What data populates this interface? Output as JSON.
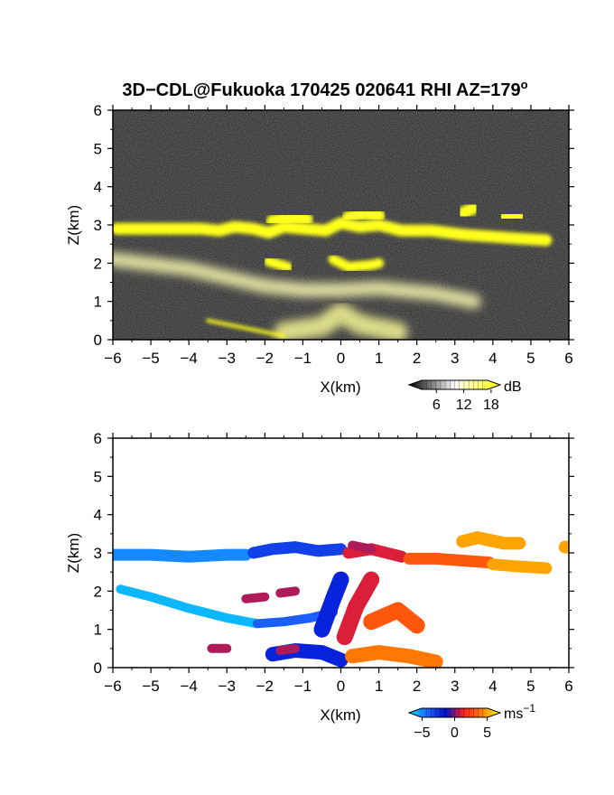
{
  "title": "3D−CDL@Fukuoka 170425 020641 RHI AZ=179",
  "title_superscript": "o",
  "chart_data": [
    {
      "type": "heatmap",
      "panel": "top",
      "quantity": "backscatter intensity",
      "xlabel": "X(km)",
      "ylabel": "Z(km)",
      "xlim": [
        -6,
        6
      ],
      "ylim": [
        0,
        6
      ],
      "xticks": [
        "−6",
        "−5",
        "−4",
        "−3",
        "−2",
        "−1",
        "0",
        "1",
        "2",
        "3",
        "4",
        "5",
        "6"
      ],
      "yticks": [
        "0",
        "1",
        "2",
        "3",
        "4",
        "5",
        "6"
      ],
      "colorbar": {
        "unit": "dB",
        "range": [
          0,
          20
        ],
        "ticks": [
          "6",
          "12",
          "18"
        ],
        "tick_values": [
          6,
          12,
          18
        ],
        "colors": [
          "#000000",
          "#ffffff",
          "#ffff00"
        ]
      },
      "background_color": "#1e1e1e",
      "highlight_color": "#ffff00",
      "regions": [
        {
          "kind": "cloud-layer",
          "level_db": 19,
          "x": [
            -5.9,
            -3.7,
            -3.2,
            -2.8,
            -2.3,
            -1.9,
            -1.5,
            -0.4,
            0,
            0.5,
            1,
            1.6,
            2.4,
            3.2,
            3.9,
            4.6,
            5.4
          ],
          "z": [
            2.9,
            2.9,
            2.85,
            2.95,
            2.9,
            2.8,
            2.95,
            2.85,
            3.05,
            2.95,
            3.0,
            2.85,
            2.85,
            2.75,
            2.7,
            2.65,
            2.6
          ]
        },
        {
          "kind": "cloud-top",
          "level_db": 19,
          "x": [
            -1.8,
            -1.3,
            -0.9
          ],
          "z": [
            3.1,
            3.2,
            3.15
          ]
        },
        {
          "kind": "cloud-top",
          "level_db": 19,
          "x": [
            0.2,
            0.6,
            1.0
          ],
          "z": [
            3.2,
            3.3,
            3.25
          ]
        },
        {
          "kind": "cloud-top",
          "level_db": 19,
          "x": [
            3.2,
            3.5
          ],
          "z": [
            3.3,
            3.45
          ]
        },
        {
          "kind": "cloud-top",
          "level_db": 19,
          "x": [
            4.3,
            4.7
          ],
          "z": [
            3.2,
            3.25
          ]
        },
        {
          "kind": "cloud-top",
          "level_db": 19,
          "x": [
            5.9,
            6.0
          ],
          "z": [
            3.15,
            3.15
          ]
        },
        {
          "kind": "cloud-patch",
          "level_db": 19,
          "x": [
            -1.9,
            -1.4
          ],
          "z": [
            2.05,
            1.9
          ]
        },
        {
          "kind": "cloud-patch",
          "level_db": 19,
          "x": [
            -0.2,
            0.2,
            0.8,
            1.0
          ],
          "z": [
            2.1,
            1.9,
            1.95,
            2.0
          ]
        },
        {
          "kind": "aerosol-layer",
          "level_db": 13,
          "x": [
            -6,
            -4,
            -2,
            -1,
            0,
            1,
            2.5,
            3.5
          ],
          "z": [
            2.1,
            1.85,
            1.4,
            1.3,
            1.3,
            1.35,
            1.2,
            1.0
          ]
        },
        {
          "kind": "near-ground-return",
          "level_db": 14,
          "x": [
            -1.5,
            -0.5,
            0,
            0.5,
            1.5
          ],
          "z": [
            0.2,
            0.35,
            0.7,
            0.4,
            0.2
          ]
        },
        {
          "kind": "ground-line",
          "level_db": 19,
          "x": [
            -3.5,
            -2.5,
            -1.5
          ],
          "z": [
            0.5,
            0.3,
            0.1
          ]
        }
      ]
    },
    {
      "type": "heatmap",
      "panel": "bottom",
      "quantity": "radial velocity",
      "xlabel": "X(km)",
      "ylabel": "Z(km)",
      "xlim": [
        -6,
        6
      ],
      "ylim": [
        0,
        6
      ],
      "xticks": [
        "−6",
        "−5",
        "−4",
        "−3",
        "−2",
        "−1",
        "0",
        "1",
        "2",
        "3",
        "4",
        "5",
        "6"
      ],
      "yticks": [
        "0",
        "1",
        "2",
        "3",
        "4",
        "5",
        "6"
      ],
      "colorbar": {
        "unit": "ms",
        "unit_superscript": "−1",
        "range": [
          -7,
          7
        ],
        "ticks": [
          "−5",
          "0",
          "5"
        ],
        "tick_values": [
          -5,
          0,
          5
        ],
        "colors": [
          "#00e5ff",
          "#1e64ff",
          "#0010d0",
          "#ff2020",
          "#ff8000",
          "#ffff00"
        ]
      },
      "background_color": "#ffffff",
      "regions": [
        {
          "kind": "cloud-layer",
          "velocity_ms": -5,
          "x": [
            -6,
            -5,
            -4,
            -3,
            -2.5
          ],
          "z": [
            2.95,
            2.95,
            2.9,
            2.95,
            2.95
          ]
        },
        {
          "kind": "cloud-layer",
          "velocity_ms": -3,
          "x": [
            -2.3,
            -1.8,
            -1.2,
            -0.6,
            0
          ],
          "z": [
            3.0,
            3.1,
            3.15,
            3.05,
            3.1
          ]
        },
        {
          "kind": "cloud-layer",
          "velocity_ms": 1,
          "x": [
            0.2,
            0.8,
            1.2,
            1.6
          ],
          "z": [
            3.0,
            3.1,
            3.0,
            2.9
          ]
        },
        {
          "kind": "cloud-layer",
          "velocity_ms": 3,
          "x": [
            1.8,
            2.5,
            3.2,
            3.9
          ],
          "z": [
            2.85,
            2.85,
            2.8,
            2.75
          ]
        },
        {
          "kind": "cloud-layer",
          "velocity_ms": 5,
          "x": [
            4.0,
            4.6,
            5.4
          ],
          "z": [
            2.7,
            2.65,
            2.6
          ]
        },
        {
          "kind": "cloud-top",
          "velocity_ms": 5,
          "x": [
            3.2,
            3.6,
            4.3,
            4.7
          ],
          "z": [
            3.3,
            3.4,
            3.25,
            3.25
          ]
        },
        {
          "kind": "cloud-top",
          "velocity_ms": 5,
          "x": [
            5.9,
            6.0
          ],
          "z": [
            3.15,
            3.15
          ]
        },
        {
          "kind": "aerosol-layer",
          "velocity_ms": -6,
          "x": [
            -5.8,
            -5,
            -4,
            -3,
            -2.2
          ],
          "z": [
            2.05,
            1.85,
            1.55,
            1.3,
            1.15
          ]
        },
        {
          "kind": "aerosol-layer",
          "velocity_ms": -4,
          "x": [
            -2.2,
            -1.5,
            -0.8,
            -0.2
          ],
          "z": [
            1.15,
            1.2,
            1.3,
            1.45
          ]
        },
        {
          "kind": "column",
          "velocity_ms": -2,
          "x": [
            -0.5,
            -0.2,
            0
          ],
          "z": [
            1.0,
            1.8,
            2.3
          ]
        },
        {
          "kind": "column",
          "velocity_ms": 1,
          "x": [
            0.1,
            0.4,
            0.8
          ],
          "z": [
            0.8,
            1.6,
            2.3
          ]
        },
        {
          "kind": "column",
          "velocity_ms": 3,
          "x": [
            0.8,
            1.5,
            2.0
          ],
          "z": [
            1.2,
            1.5,
            1.1
          ]
        },
        {
          "kind": "near-ground",
          "velocity_ms": -2,
          "x": [
            -1.8,
            -1.2,
            -0.5,
            0
          ],
          "z": [
            0.35,
            0.45,
            0.4,
            0.2
          ]
        },
        {
          "kind": "near-ground",
          "velocity_ms": 4,
          "x": [
            0.3,
            1.0,
            1.8,
            2.5
          ],
          "z": [
            0.3,
            0.4,
            0.3,
            0.15
          ]
        },
        {
          "kind": "patch",
          "velocity_ms": 0.5,
          "x": [
            -2.5,
            -2.0
          ],
          "z": [
            1.8,
            1.85
          ]
        },
        {
          "kind": "patch",
          "velocity_ms": 0.5,
          "x": [
            -1.6,
            -1.2
          ],
          "z": [
            1.95,
            2.0
          ]
        },
        {
          "kind": "patch",
          "velocity_ms": 0.5,
          "x": [
            -1.6,
            -1.2
          ],
          "z": [
            0.45,
            0.5
          ]
        },
        {
          "kind": "patch",
          "velocity_ms": 0.5,
          "x": [
            -3.4,
            -3.0
          ],
          "z": [
            0.5,
            0.5
          ]
        },
        {
          "kind": "patch",
          "velocity_ms": 0.5,
          "x": [
            0.3,
            0.8
          ],
          "z": [
            3.2,
            3.1
          ]
        }
      ]
    }
  ]
}
